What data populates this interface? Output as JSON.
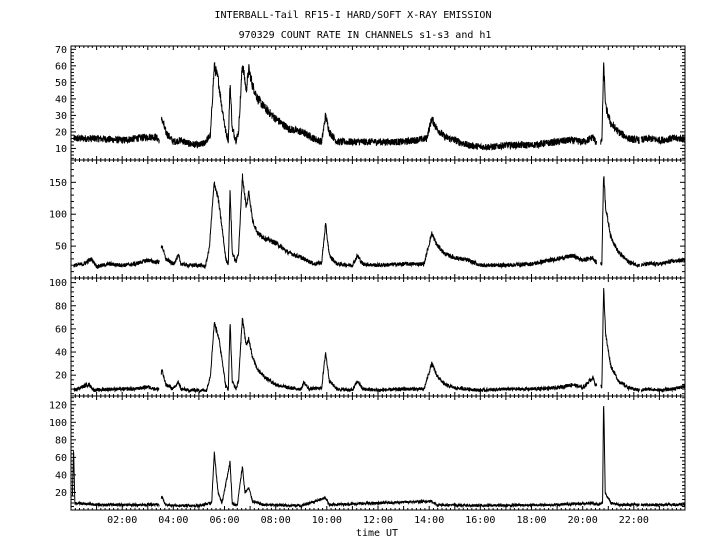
{
  "title_line1": "INTERBALL-Tail RF15-I HARD/SOFT X-RAY EMISSION",
  "title_line2": "970329  COUNT RATE IN CHANNELS s1-s3 and h1",
  "xlabel": "time UT",
  "chart_data": {
    "type": "line",
    "title": "INTERBALL-Tail RF15-I HARD/SOFT X-RAY EMISSION",
    "subtitle": "970329  COUNT RATE IN CHANNELS s1-s3 and h1",
    "xlabel": "time UT",
    "xlim": [
      0,
      24
    ],
    "x_ticks": [
      2,
      4,
      6,
      8,
      10,
      12,
      14,
      16,
      18,
      20,
      22
    ],
    "x_tick_labels": [
      "02:00",
      "04:00",
      "06:00",
      "08:00",
      "10:00",
      "12:00",
      "14:00",
      "16:00",
      "18:00",
      "20:00",
      "22:00"
    ],
    "grid": false,
    "series": [
      {
        "ylim": [
          3,
          72
        ],
        "y_ticks": [
          10,
          20,
          30,
          40,
          50,
          60,
          70
        ],
        "noise": 2.5,
        "points": [
          [
            0.1,
            16
          ],
          [
            1.0,
            16
          ],
          [
            2.0,
            15
          ],
          [
            3.0,
            17
          ],
          [
            3.3,
            17
          ],
          [
            3.45,
            15
          ],
          [
            3.55,
            28
          ],
          [
            3.7,
            20
          ],
          [
            4.0,
            14
          ],
          [
            4.3,
            15
          ],
          [
            4.6,
            13
          ],
          [
            5.0,
            12
          ],
          [
            5.2,
            13
          ],
          [
            5.45,
            18
          ],
          [
            5.6,
            60
          ],
          [
            5.75,
            52
          ],
          [
            5.9,
            35
          ],
          [
            6.05,
            20
          ],
          [
            6.15,
            15
          ],
          [
            6.22,
            50
          ],
          [
            6.3,
            22
          ],
          [
            6.45,
            15
          ],
          [
            6.55,
            20
          ],
          [
            6.7,
            62
          ],
          [
            6.85,
            45
          ],
          [
            6.95,
            58
          ],
          [
            7.1,
            48
          ],
          [
            7.3,
            40
          ],
          [
            7.6,
            34
          ],
          [
            8.0,
            28
          ],
          [
            8.5,
            22
          ],
          [
            9.0,
            20
          ],
          [
            9.5,
            16
          ],
          [
            9.8,
            14
          ],
          [
            9.95,
            30
          ],
          [
            10.1,
            20
          ],
          [
            10.4,
            14
          ],
          [
            11.0,
            14
          ],
          [
            12.0,
            14
          ],
          [
            13.0,
            14
          ],
          [
            13.9,
            16
          ],
          [
            14.1,
            28
          ],
          [
            14.3,
            22
          ],
          [
            14.6,
            17
          ],
          [
            15.0,
            15
          ],
          [
            15.5,
            12
          ],
          [
            16.0,
            11
          ],
          [
            16.5,
            11
          ],
          [
            17.0,
            12
          ],
          [
            18.0,
            12
          ],
          [
            19.0,
            14
          ],
          [
            19.5,
            15
          ],
          [
            20.0,
            14
          ],
          [
            20.2,
            15
          ],
          [
            20.4,
            17
          ],
          [
            20.5,
            14
          ],
          [
            20.75,
            14
          ],
          [
            20.82,
            60
          ],
          [
            20.9,
            35
          ],
          [
            21.1,
            25
          ],
          [
            21.4,
            20
          ],
          [
            21.8,
            16
          ],
          [
            22.2,
            15
          ],
          [
            22.6,
            16
          ],
          [
            23.0,
            15
          ],
          [
            23.5,
            16
          ],
          [
            23.95,
            16
          ]
        ],
        "gaps": [
          [
            3.45,
            3.52
          ],
          [
            20.55,
            20.7
          ],
          [
            22.22,
            22.28
          ]
        ]
      },
      {
        "ylim": [
          0,
          185
        ],
        "y_ticks": [
          50,
          100,
          150
        ],
        "noise": 4,
        "points": [
          [
            0.1,
            20
          ],
          [
            0.5,
            22
          ],
          [
            0.8,
            30
          ],
          [
            1.0,
            18
          ],
          [
            1.5,
            22
          ],
          [
            2.0,
            20
          ],
          [
            2.5,
            22
          ],
          [
            3.0,
            28
          ],
          [
            3.3,
            25
          ],
          [
            3.45,
            25
          ],
          [
            3.55,
            52
          ],
          [
            3.7,
            30
          ],
          [
            4.0,
            22
          ],
          [
            4.2,
            35
          ],
          [
            4.3,
            22
          ],
          [
            4.6,
            20
          ],
          [
            5.0,
            20
          ],
          [
            5.25,
            18
          ],
          [
            5.4,
            45
          ],
          [
            5.6,
            150
          ],
          [
            5.75,
            125
          ],
          [
            5.9,
            80
          ],
          [
            6.05,
            30
          ],
          [
            6.15,
            22
          ],
          [
            6.22,
            140
          ],
          [
            6.3,
            40
          ],
          [
            6.45,
            25
          ],
          [
            6.55,
            40
          ],
          [
            6.7,
            160
          ],
          [
            6.85,
            110
          ],
          [
            6.95,
            135
          ],
          [
            7.1,
            90
          ],
          [
            7.3,
            70
          ],
          [
            7.6,
            62
          ],
          [
            8.0,
            55
          ],
          [
            8.5,
            40
          ],
          [
            9.0,
            32
          ],
          [
            9.5,
            22
          ],
          [
            9.8,
            24
          ],
          [
            9.95,
            85
          ],
          [
            10.1,
            35
          ],
          [
            10.4,
            22
          ],
          [
            11.0,
            20
          ],
          [
            11.2,
            35
          ],
          [
            11.4,
            22
          ],
          [
            12.0,
            20
          ],
          [
            13.0,
            22
          ],
          [
            13.8,
            22
          ],
          [
            14.1,
            70
          ],
          [
            14.3,
            52
          ],
          [
            14.6,
            38
          ],
          [
            15.0,
            32
          ],
          [
            15.5,
            28
          ],
          [
            16.0,
            20
          ],
          [
            17.0,
            20
          ],
          [
            18.0,
            22
          ],
          [
            19.0,
            30
          ],
          [
            19.6,
            35
          ],
          [
            20.0,
            28
          ],
          [
            20.4,
            32
          ],
          [
            20.5,
            25
          ],
          [
            20.75,
            22
          ],
          [
            20.82,
            165
          ],
          [
            20.9,
            110
          ],
          [
            21.1,
            65
          ],
          [
            21.4,
            40
          ],
          [
            21.8,
            25
          ],
          [
            22.2,
            20
          ],
          [
            22.6,
            22
          ],
          [
            23.0,
            22
          ],
          [
            23.5,
            26
          ],
          [
            23.95,
            28
          ]
        ],
        "gaps": [
          [
            3.45,
            3.52
          ],
          [
            20.55,
            20.7
          ],
          [
            22.22,
            22.28
          ]
        ]
      },
      {
        "ylim": [
          2,
          104
        ],
        "y_ticks": [
          20,
          40,
          60,
          80,
          100
        ],
        "noise": 2,
        "points": [
          [
            0.1,
            7
          ],
          [
            0.7,
            12
          ],
          [
            0.9,
            7
          ],
          [
            1.5,
            8
          ],
          [
            2.0,
            8
          ],
          [
            2.5,
            8
          ],
          [
            3.0,
            10
          ],
          [
            3.3,
            8
          ],
          [
            3.45,
            8
          ],
          [
            3.55,
            25
          ],
          [
            3.7,
            12
          ],
          [
            4.0,
            8
          ],
          [
            4.2,
            14
          ],
          [
            4.3,
            8
          ],
          [
            4.6,
            7
          ],
          [
            5.0,
            7
          ],
          [
            5.3,
            7
          ],
          [
            5.45,
            20
          ],
          [
            5.6,
            65
          ],
          [
            5.75,
            55
          ],
          [
            5.9,
            35
          ],
          [
            6.05,
            10
          ],
          [
            6.15,
            8
          ],
          [
            6.22,
            68
          ],
          [
            6.3,
            15
          ],
          [
            6.45,
            8
          ],
          [
            6.55,
            15
          ],
          [
            6.7,
            70
          ],
          [
            6.85,
            45
          ],
          [
            6.95,
            52
          ],
          [
            7.1,
            35
          ],
          [
            7.3,
            25
          ],
          [
            7.6,
            18
          ],
          [
            8.0,
            12
          ],
          [
            8.5,
            9
          ],
          [
            9.0,
            8
          ],
          [
            9.1,
            14
          ],
          [
            9.3,
            8
          ],
          [
            9.8,
            9
          ],
          [
            9.95,
            40
          ],
          [
            10.1,
            15
          ],
          [
            10.4,
            8
          ],
          [
            11.0,
            7
          ],
          [
            11.2,
            15
          ],
          [
            11.4,
            8
          ],
          [
            12.0,
            7
          ],
          [
            13.0,
            8
          ],
          [
            13.8,
            8
          ],
          [
            14.1,
            30
          ],
          [
            14.3,
            20
          ],
          [
            14.6,
            12
          ],
          [
            15.0,
            9
          ],
          [
            15.5,
            8
          ],
          [
            16.0,
            7
          ],
          [
            17.0,
            8
          ],
          [
            18.0,
            8
          ],
          [
            19.0,
            9
          ],
          [
            19.6,
            12
          ],
          [
            20.0,
            9
          ],
          [
            20.4,
            18
          ],
          [
            20.5,
            12
          ],
          [
            20.75,
            10
          ],
          [
            20.82,
            95
          ],
          [
            20.9,
            55
          ],
          [
            21.1,
            28
          ],
          [
            21.4,
            15
          ],
          [
            21.8,
            9
          ],
          [
            22.2,
            7
          ],
          [
            22.6,
            8
          ],
          [
            23.0,
            7
          ],
          [
            23.5,
            8
          ],
          [
            23.95,
            10
          ]
        ],
        "gaps": [
          [
            3.45,
            3.52
          ],
          [
            20.55,
            20.7
          ],
          [
            22.22,
            22.28
          ]
        ]
      },
      {
        "ylim": [
          0,
          130
        ],
        "y_ticks": [
          20,
          40,
          60,
          80,
          100,
          120
        ],
        "noise": 2,
        "points": [
          [
            0.05,
            8
          ],
          [
            0.1,
            70
          ],
          [
            0.15,
            8
          ],
          [
            1.0,
            6
          ],
          [
            2.0,
            6
          ],
          [
            3.0,
            6
          ],
          [
            3.45,
            6
          ],
          [
            3.55,
            15
          ],
          [
            3.7,
            6
          ],
          [
            4.0,
            5
          ],
          [
            5.0,
            5
          ],
          [
            5.5,
            8
          ],
          [
            5.6,
            65
          ],
          [
            5.75,
            20
          ],
          [
            5.9,
            8
          ],
          [
            6.22,
            55
          ],
          [
            6.3,
            8
          ],
          [
            6.5,
            5
          ],
          [
            6.7,
            50
          ],
          [
            6.8,
            20
          ],
          [
            6.95,
            25
          ],
          [
            7.1,
            10
          ],
          [
            7.5,
            6
          ],
          [
            9.0,
            5
          ],
          [
            9.95,
            14
          ],
          [
            10.1,
            6
          ],
          [
            14.1,
            10
          ],
          [
            14.3,
            6
          ],
          [
            16.0,
            5
          ],
          [
            19.0,
            6
          ],
          [
            20.4,
            8
          ],
          [
            20.6,
            6
          ],
          [
            20.78,
            8
          ],
          [
            20.82,
            128
          ],
          [
            20.88,
            20
          ],
          [
            21.1,
            8
          ],
          [
            21.5,
            6
          ],
          [
            23.95,
            6
          ]
        ],
        "gaps": [
          [
            3.45,
            3.52
          ],
          [
            22.22,
            22.28
          ]
        ]
      }
    ]
  }
}
